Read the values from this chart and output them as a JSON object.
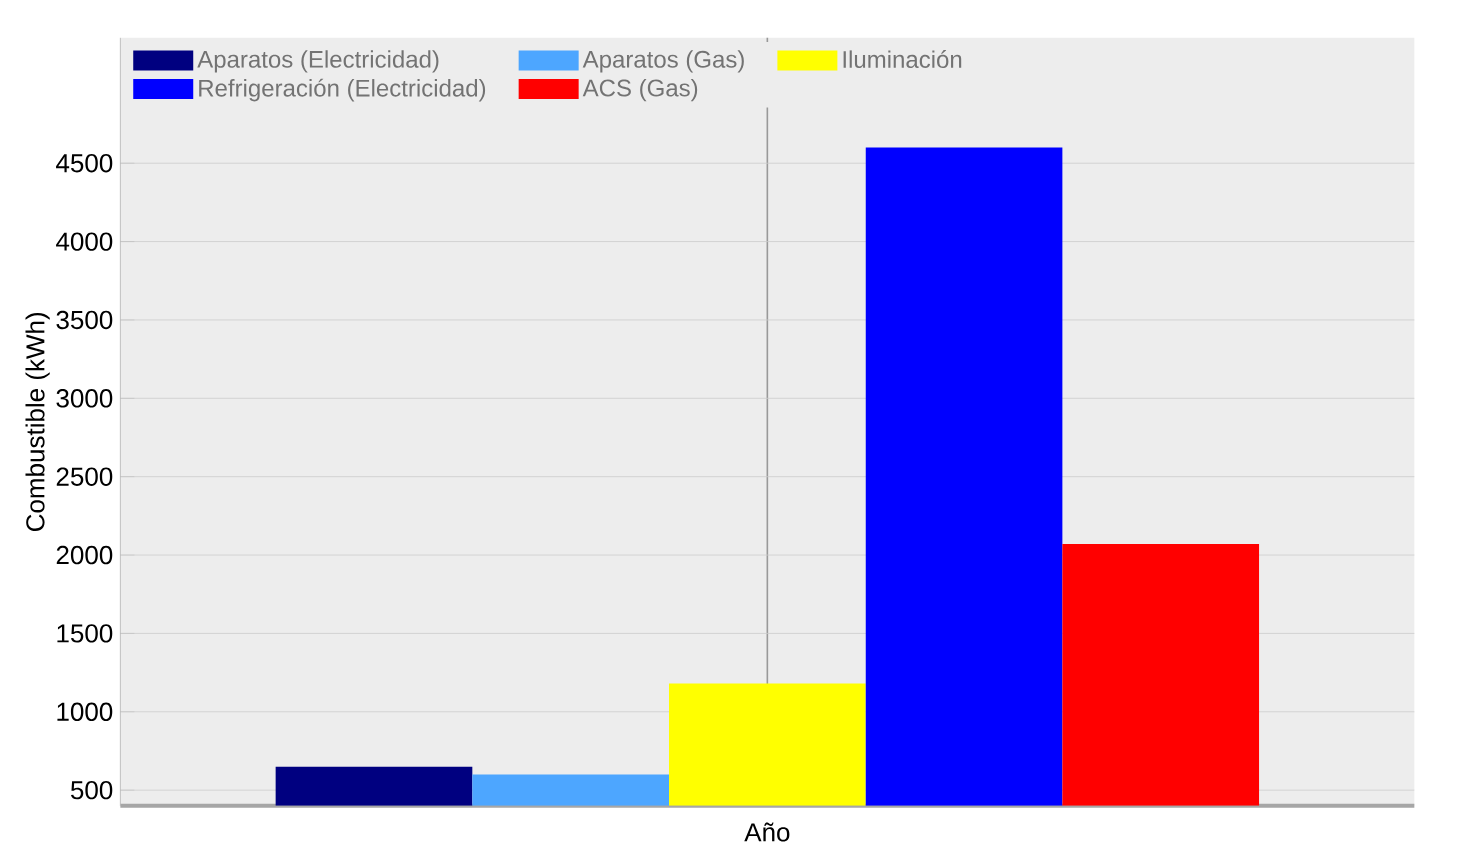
{
  "chart_data": {
    "type": "bar",
    "ylabel": "Combustible (kWh)",
    "xlabel": "Año",
    "categories": [
      null
    ],
    "series": [
      {
        "name": "Aparatos (Electricidad)",
        "color": "#000080",
        "values": [
          650
        ]
      },
      {
        "name": "Aparatos (Gas)",
        "color": "#4da6ff",
        "values": [
          600
        ]
      },
      {
        "name": "Iluminación",
        "color": "#ffff00",
        "values": [
          1180
        ]
      },
      {
        "name": "Refrigeración (Electricidad)",
        "color": "#0000ff",
        "values": [
          4600
        ]
      },
      {
        "name": "ACS (Gas)",
        "color": "#ff0000",
        "values": [
          2070
        ]
      }
    ],
    "ylim": [
      400,
      5300
    ],
    "yticks": [
      500,
      1000,
      1500,
      2000,
      2500,
      3000,
      3500,
      4000,
      4500
    ],
    "grid": true,
    "legend": "top left"
  }
}
